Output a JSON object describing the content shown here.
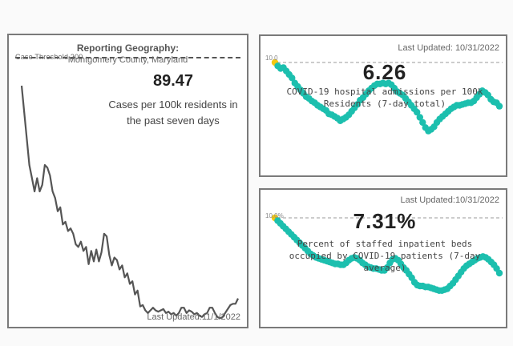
{
  "colors": {
    "line_gray": "#555555",
    "dot_teal": "#1cbfae",
    "highlight_yellow": "#f2c811",
    "threshold_dash": "#bbbbbb"
  },
  "cases_card": {
    "geo_title": "Reporting Geography:",
    "geo_name": "Montgomery County, Maryland",
    "threshold_label": "Case Threshold 200",
    "value": "89.47",
    "description": "Cases per 100k residents in the past seven days",
    "last_updated": "Last Updated:11/1/2022"
  },
  "hosp_card": {
    "last_updated": "Last Updated:  10/31/2022",
    "value": "6.26",
    "description": "COVID-19 hospital admissions per 100k Residents (7-day total)",
    "axis_label": "10.0"
  },
  "beds_card": {
    "last_updated": "Last Updated:10/31/2022",
    "value": "7.31%",
    "description": "Percent of staffed inpatient beds occupied by COVID-19 patients (7-day average)",
    "axis_label": "10.0%"
  },
  "chart_data": [
    {
      "type": "line",
      "title": "Cases per 100k residents in the past seven days",
      "threshold": 200,
      "ylim": [
        0,
        200
      ],
      "values": [
        180,
        160,
        140,
        120,
        110,
        100,
        110,
        100,
        105,
        120,
        118,
        112,
        100,
        95,
        85,
        88,
        75,
        77,
        70,
        72,
        68,
        60,
        58,
        62,
        55,
        58,
        45,
        55,
        47,
        56,
        47,
        54,
        68,
        66,
        52,
        44,
        50,
        48,
        41,
        44,
        35,
        38,
        30,
        32,
        22,
        25,
        13,
        14,
        10,
        8,
        10,
        12,
        10,
        9,
        10,
        11,
        8,
        9,
        7,
        8,
        6,
        8,
        12,
        12,
        8,
        10,
        9,
        7,
        8,
        6,
        5,
        7,
        8,
        12,
        12,
        8,
        5,
        4,
        5,
        8,
        11,
        14,
        15,
        15,
        19
      ]
    },
    {
      "type": "scatter",
      "title": "COVID-19 hospital admissions per 100k Residents (7-day total)",
      "ylim": [
        0,
        10
      ],
      "threshold": 10,
      "values": [
        10.0,
        9.6,
        9.3,
        9.4,
        9.0,
        8.6,
        8.2,
        7.6,
        7.2,
        6.8,
        6.4,
        6.0,
        5.8,
        5.5,
        5.3,
        5.0,
        4.8,
        4.6,
        4.4,
        4.0,
        3.9,
        3.7,
        3.5,
        3.2,
        3.4,
        3.6,
        3.9,
        4.3,
        4.7,
        5.1,
        5.6,
        5.9,
        6.3,
        6.7,
        7.0,
        7.3,
        7.5,
        7.5,
        7.6,
        7.5,
        7.6,
        7.4,
        7.0,
        6.6,
        6.4,
        6.2,
        5.8,
        5.4,
        5.0,
        4.6,
        4.2,
        3.6,
        3.0,
        2.4,
        2.0,
        2.2,
        2.5,
        3.0,
        3.4,
        3.7,
        4.0,
        4.3,
        4.6,
        4.8,
        5.0,
        5.0,
        5.1,
        5.2,
        5.3,
        5.3,
        5.5,
        5.9,
        6.3,
        6.7,
        6.5,
        6.2,
        5.7,
        5.4,
        5.3,
        4.9
      ]
    },
    {
      "type": "scatter",
      "title": "Percent of staffed inpatient beds occupied by COVID-19 patients (7-day average)",
      "ylim": [
        0,
        10
      ],
      "threshold": 10,
      "values": [
        10.0,
        9.7,
        9.4,
        9.1,
        8.8,
        8.5,
        8.2,
        7.9,
        7.6,
        7.3,
        7.0,
        6.7,
        6.4,
        6.1,
        5.9,
        5.7,
        5.6,
        5.5,
        5.4,
        5.3,
        5.2,
        5.1,
        5.0,
        5.0,
        4.9,
        4.9,
        5.1,
        5.4,
        5.6,
        5.7,
        5.6,
        5.4,
        5.1,
        4.9,
        4.7,
        4.6,
        4.5,
        4.5,
        4.4,
        4.3,
        4.3,
        4.6,
        5.1,
        5.5,
        5.6,
        5.4,
        5.0,
        4.6,
        4.3,
        3.9,
        3.5,
        3.0,
        2.7,
        2.6,
        2.6,
        2.5,
        2.5,
        2.4,
        2.3,
        2.2,
        2.1,
        2.1,
        2.2,
        2.3,
        2.6,
        2.9,
        3.3,
        3.7,
        4.1,
        4.5,
        4.8,
        5.0,
        5.2,
        5.4,
        5.6,
        5.7,
        5.8,
        5.7,
        5.5,
        5.2,
        4.9,
        4.5,
        4.0
      ]
    }
  ]
}
